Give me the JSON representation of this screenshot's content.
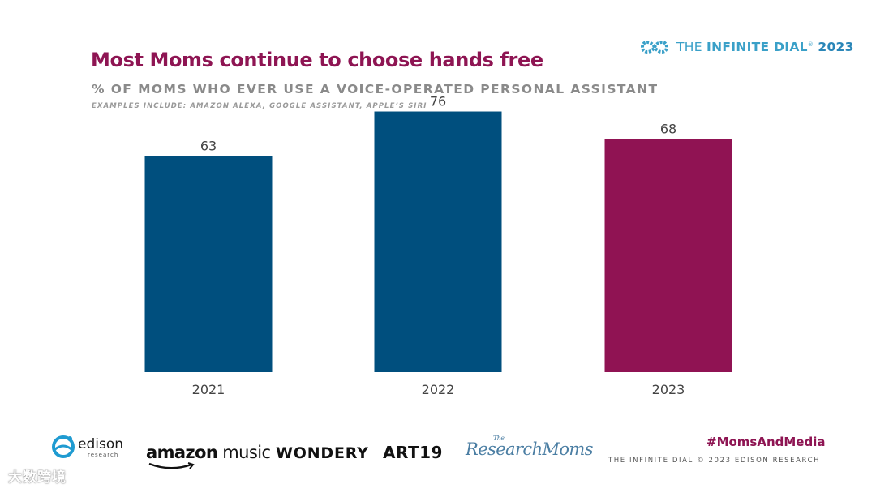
{
  "brand": {
    "prefix": "THE ",
    "strong": "INFINITE DIAL",
    "mark": "®",
    "year": "2023",
    "icon": "infinity-icon",
    "icon_color": "#3aa0c8"
  },
  "chart_data": {
    "type": "bar",
    "title": "Most Moms continue to choose hands free",
    "subtitle": "% OF MOMS WHO EVER USE A VOICE-OPERATED PERSONAL ASSISTANT",
    "note": "EXAMPLES INCLUDE:  AMAZON ALEXA, GOOGLE ASSISTANT, APPLE’S SIRI",
    "categories": [
      "2021",
      "2022",
      "2023"
    ],
    "values": [
      63,
      76,
      68
    ],
    "colors": [
      "#004f7e",
      "#004f7e",
      "#901353"
    ],
    "ylim": [
      0,
      100
    ],
    "xlabel": "",
    "ylabel": "",
    "grid": false,
    "legend": "none"
  },
  "footer": {
    "logos": {
      "edison": "edison",
      "edison_sub": "research",
      "amazon_a": "amazon",
      "amazon_b": " music",
      "wondery": "WONDERY",
      "art19": "ART19",
      "resmoms_small": "The",
      "resmoms": "ResearchMoms"
    },
    "hashtag": "#MomsAndMedia",
    "footnote": "THE INFINITE DIAL   © 2023 EDISON RESEARCH",
    "watermark": "大数跨境"
  }
}
